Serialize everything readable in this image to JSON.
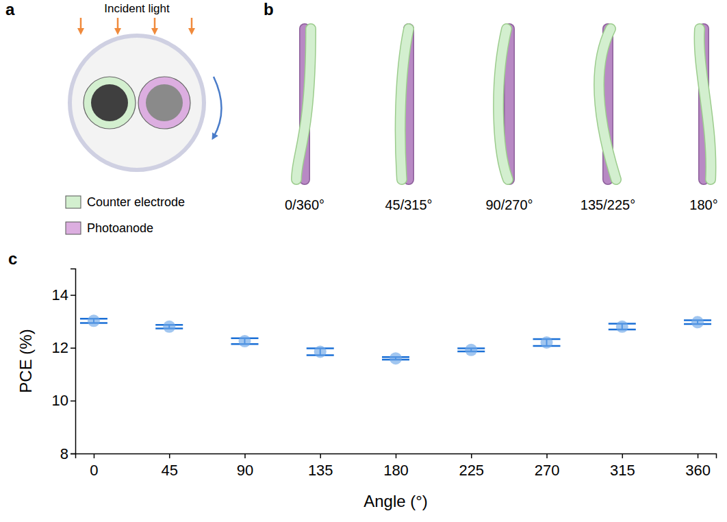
{
  "panel_labels": [
    "a",
    "b",
    "c"
  ],
  "diagram_a": {
    "incident_light": "Incident light",
    "legend": [
      {
        "label": "Counter electrode",
        "color": "#d3efcf"
      },
      {
        "label": "Photoanode",
        "color": "#dcaee0"
      }
    ]
  },
  "diagram_b": {
    "labels": [
      "0/360°",
      "45/315°",
      "90/270°",
      "135/225°",
      "180°"
    ]
  },
  "chart_data": {
    "type": "scatter",
    "x_label": "Angle (°)",
    "y_label": "PCE (%)",
    "x": [
      0,
      45,
      90,
      135,
      180,
      225,
      270,
      315,
      360
    ],
    "series": [
      {
        "color": "#6fa8e8",
        "marker": "circle",
        "values": [
          13.02,
          12.8,
          12.25,
          11.85,
          11.6,
          11.92,
          12.2,
          12.8,
          12.97
        ],
        "errors": [
          0.08,
          0.07,
          0.11,
          0.13,
          0.05,
          0.06,
          0.13,
          0.11,
          0.07
        ]
      }
    ],
    "xlim": [
      -11,
      371
    ],
    "xticks": [
      0,
      45,
      90,
      135,
      180,
      225,
      270,
      315,
      360
    ],
    "ylim": [
      8,
      15
    ],
    "yticks": [
      8,
      10,
      12,
      14
    ]
  }
}
